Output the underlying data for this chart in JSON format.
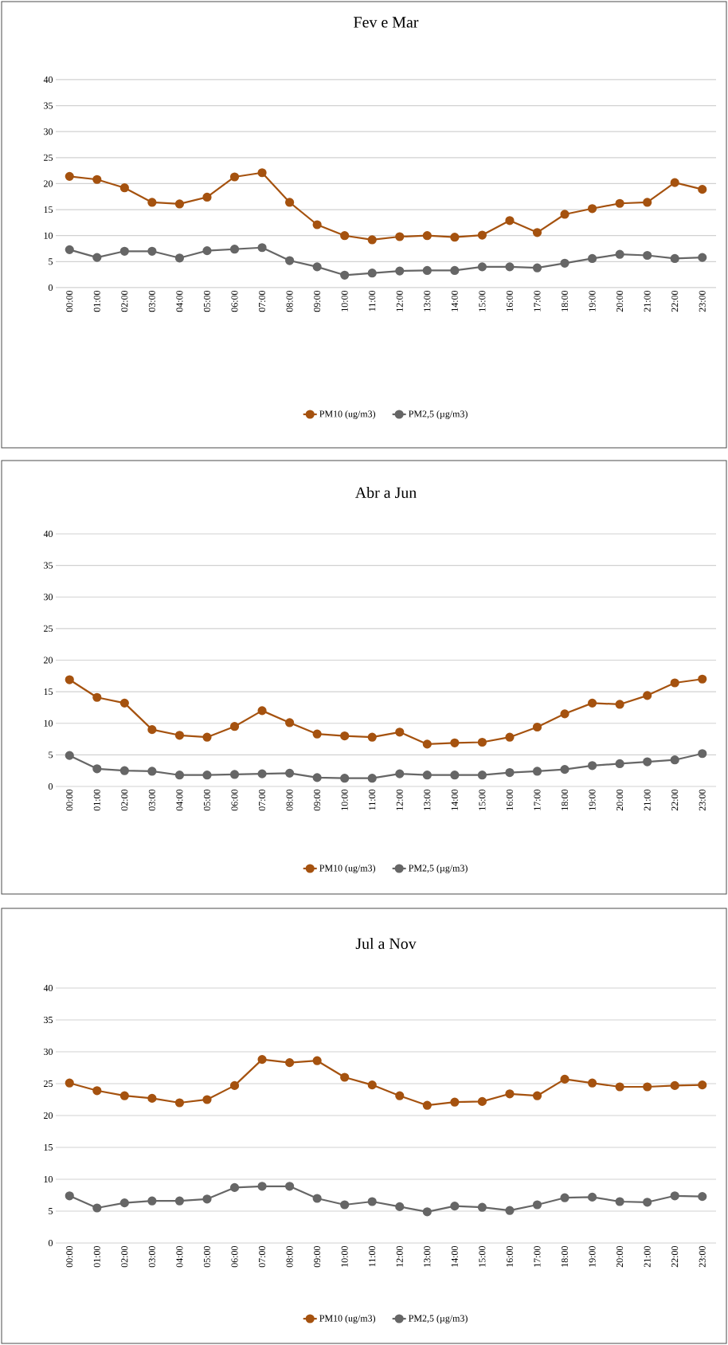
{
  "chart_data": [
    {
      "type": "line",
      "title": "Fev e Mar",
      "categories": [
        "00:00",
        "01:00",
        "02:00",
        "03:00",
        "04:00",
        "05:00",
        "06:00",
        "07:00",
        "08:00",
        "09:00",
        "10:00",
        "11:00",
        "12:00",
        "13:00",
        "14:00",
        "15:00",
        "16:00",
        "17:00",
        "18:00",
        "19:00",
        "20:00",
        "21:00",
        "22:00",
        "23:00"
      ],
      "ylim": [
        0,
        40
      ],
      "yticks": [
        0,
        5,
        10,
        15,
        20,
        25,
        30,
        35,
        40
      ],
      "grid": "y",
      "legend": "bottom",
      "marker": "circle",
      "series": [
        {
          "name": "PM10 (ug/m3)",
          "color": "#a5520f",
          "values": [
            21.4,
            20.8,
            19.2,
            16.4,
            16.1,
            17.4,
            21.3,
            22.1,
            16.4,
            12.1,
            10,
            9.2,
            9.8,
            10,
            9.7,
            10.1,
            12.9,
            10.6,
            14.1,
            15.2,
            16.2,
            16.4,
            20.2,
            18.9
          ]
        },
        {
          "name": "PM2,5 (µg/m3)",
          "color": "#666666",
          "values": [
            7.3,
            5.8,
            7,
            7,
            5.7,
            7.1,
            7.4,
            7.7,
            5.2,
            4,
            2.4,
            2.8,
            3.2,
            3.3,
            3.3,
            4,
            4,
            3.8,
            4.7,
            5.6,
            6.4,
            6.2,
            5.6,
            5.8
          ]
        }
      ]
    },
    {
      "type": "line",
      "title": "Abr a Jun",
      "categories": [
        "00:00",
        "01:00",
        "02:00",
        "03:00",
        "04:00",
        "05:00",
        "06:00",
        "07:00",
        "08:00",
        "09:00",
        "10:00",
        "11:00",
        "12:00",
        "13:00",
        "14:00",
        "15:00",
        "16:00",
        "17:00",
        "18:00",
        "19:00",
        "20:00",
        "21:00",
        "22:00",
        "23:00"
      ],
      "ylim": [
        0,
        40
      ],
      "yticks": [
        0,
        5,
        10,
        15,
        20,
        25,
        30,
        35,
        40
      ],
      "grid": "y",
      "legend": "bottom",
      "marker": "circle",
      "series": [
        {
          "name": "PM10 (ug/m3)",
          "color": "#a5520f",
          "values": [
            16.9,
            14.1,
            13.2,
            9,
            8.1,
            7.8,
            9.5,
            12,
            10.1,
            8.3,
            8,
            7.8,
            8.6,
            6.7,
            6.9,
            7,
            7.8,
            9.4,
            11.5,
            13.2,
            13,
            14.4,
            16.4,
            17
          ]
        },
        {
          "name": "PM2,5 (µg/m3)",
          "color": "#666666",
          "values": [
            4.9,
            2.8,
            2.5,
            2.4,
            1.8,
            1.8,
            1.9,
            2,
            2.1,
            1.4,
            1.3,
            1.3,
            2,
            1.8,
            1.8,
            1.8,
            2.2,
            2.4,
            2.7,
            3.3,
            3.6,
            3.9,
            4.2,
            5.2
          ]
        }
      ]
    },
    {
      "type": "line",
      "title": "Jul a Nov",
      "categories": [
        "00:00",
        "01:00",
        "02:00",
        "03:00",
        "04:00",
        "05:00",
        "06:00",
        "07:00",
        "08:00",
        "09:00",
        "10:00",
        "11:00",
        "12:00",
        "13:00",
        "14:00",
        "15:00",
        "16:00",
        "17:00",
        "18:00",
        "19:00",
        "20:00",
        "21:00",
        "22:00",
        "23:00"
      ],
      "ylim": [
        0,
        40
      ],
      "yticks": [
        0,
        5,
        10,
        15,
        20,
        25,
        30,
        35,
        40
      ],
      "grid": "y",
      "legend": "bottom",
      "marker": "circle",
      "series": [
        {
          "name": "PM10 (ug/m3)",
          "color": "#a5520f",
          "values": [
            25.1,
            23.9,
            23.1,
            22.7,
            22,
            22.5,
            24.7,
            28.8,
            28.3,
            28.6,
            26,
            24.8,
            23.1,
            21.6,
            22.1,
            22.2,
            23.4,
            23.1,
            25.7,
            25.1,
            24.5,
            24.5,
            24.7,
            24.8
          ]
        },
        {
          "name": "PM2,5 (µg/m3)",
          "color": "#666666",
          "values": [
            7.4,
            5.5,
            6.3,
            6.6,
            6.6,
            6.9,
            8.7,
            8.9,
            8.9,
            7,
            6,
            6.5,
            5.7,
            4.9,
            5.8,
            5.6,
            5.1,
            6,
            7.1,
            7.2,
            6.5,
            6.4,
            7.4,
            7.3
          ]
        }
      ]
    }
  ]
}
